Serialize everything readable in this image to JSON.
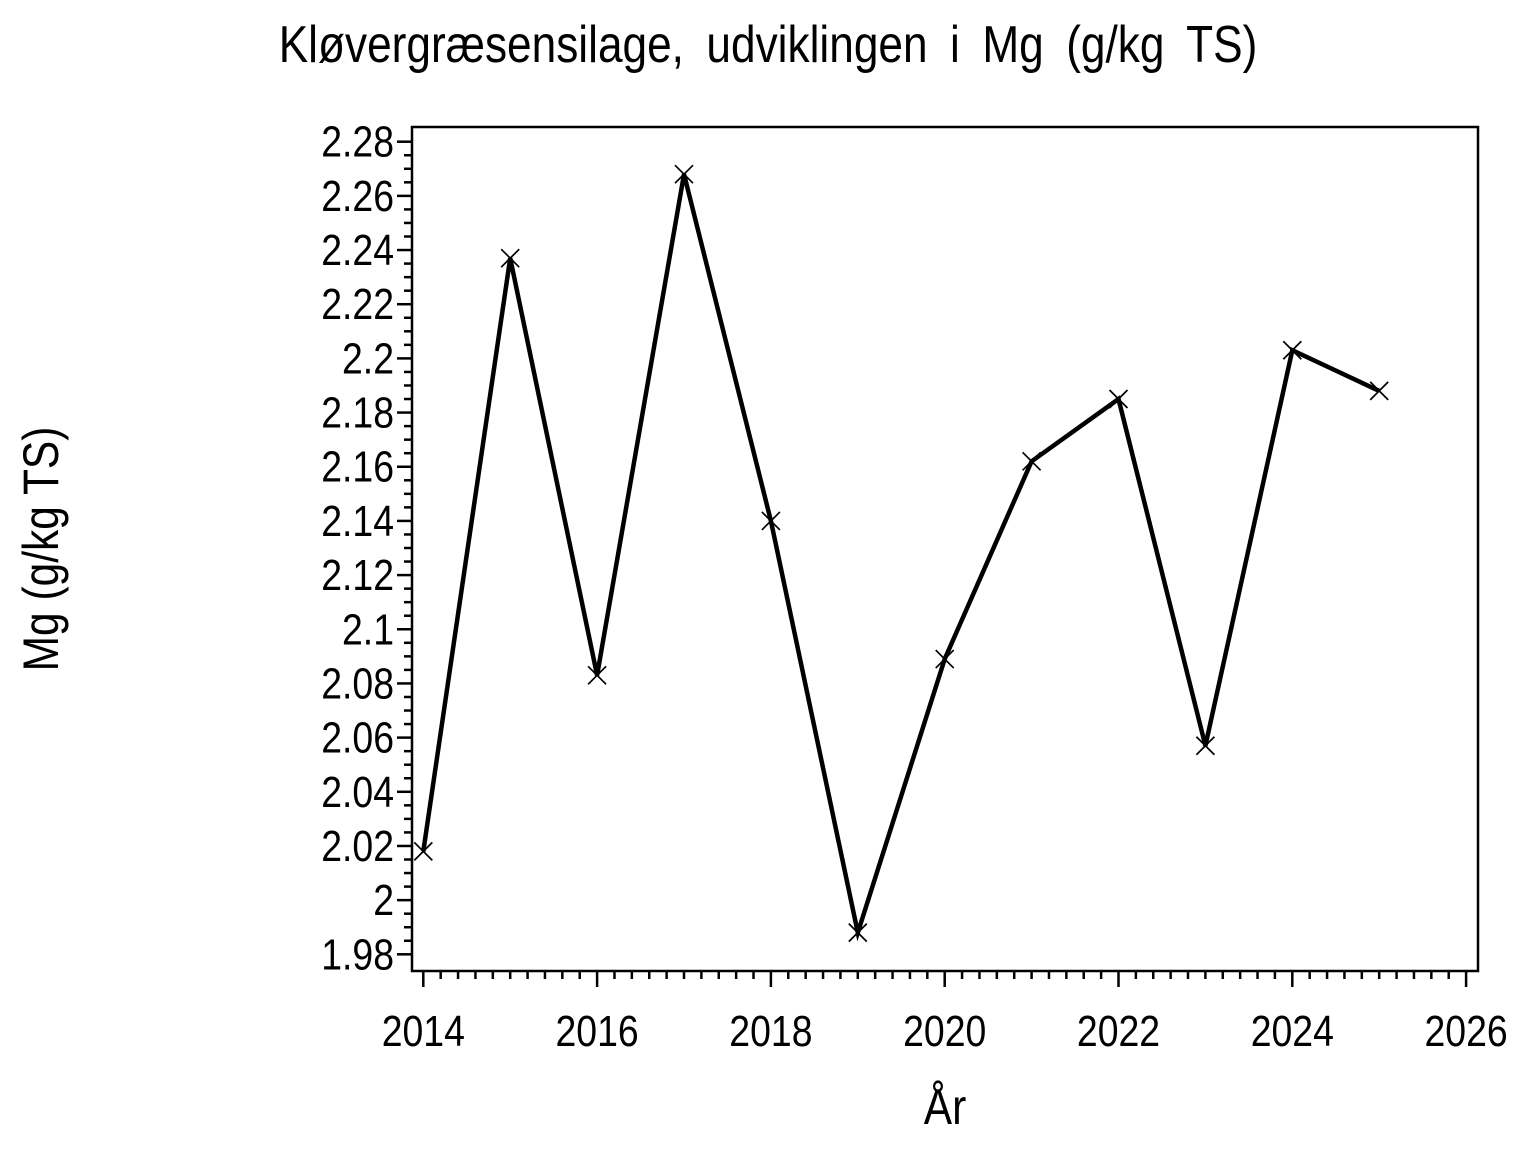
{
  "chart_data": {
    "type": "line",
    "title": "Kløvergræsensilage, udviklingen i Mg (g/kg TS)",
    "xlabel": "År",
    "ylabel": "Mg (g/kg TS)",
    "x": [
      2014,
      2015,
      2016,
      2017,
      2018,
      2019,
      2020,
      2021,
      2022,
      2023,
      2024,
      2025
    ],
    "values": [
      2.018,
      2.237,
      2.083,
      2.268,
      2.14,
      1.988,
      2.089,
      2.162,
      2.185,
      2.057,
      2.203,
      2.188
    ],
    "series_name": "Mg (g/kg TS)",
    "marker": "x",
    "line_color": "#000000",
    "marker_color": "#000000",
    "background_color": "#ffffff",
    "grid": false,
    "legend_position": "none",
    "xlim": [
      2013.87,
      2026.14
    ],
    "ylim": [
      1.974,
      2.285
    ],
    "x_major_ticks": [
      2014,
      2016,
      2018,
      2020,
      2022,
      2024,
      2026
    ],
    "x_tick_labels": [
      "2014",
      "2016",
      "2018",
      "2020",
      "2022",
      "2024",
      "2026"
    ],
    "x_minor_step": 0.2,
    "y_major_ticks": [
      1.98,
      2.0,
      2.02,
      2.04,
      2.06,
      2.08,
      2.1,
      2.12,
      2.14,
      2.16,
      2.18,
      2.2,
      2.22,
      2.24,
      2.26,
      2.28
    ],
    "y_tick_labels": [
      "1.98",
      "2",
      "2.02",
      "2.04",
      "2.06",
      "2.08",
      "2.1",
      "2.12",
      "2.14",
      "2.16",
      "2.18",
      "2.2",
      "2.22",
      "2.24",
      "2.26",
      "2.28"
    ],
    "y_minor_step": 0.005
  }
}
